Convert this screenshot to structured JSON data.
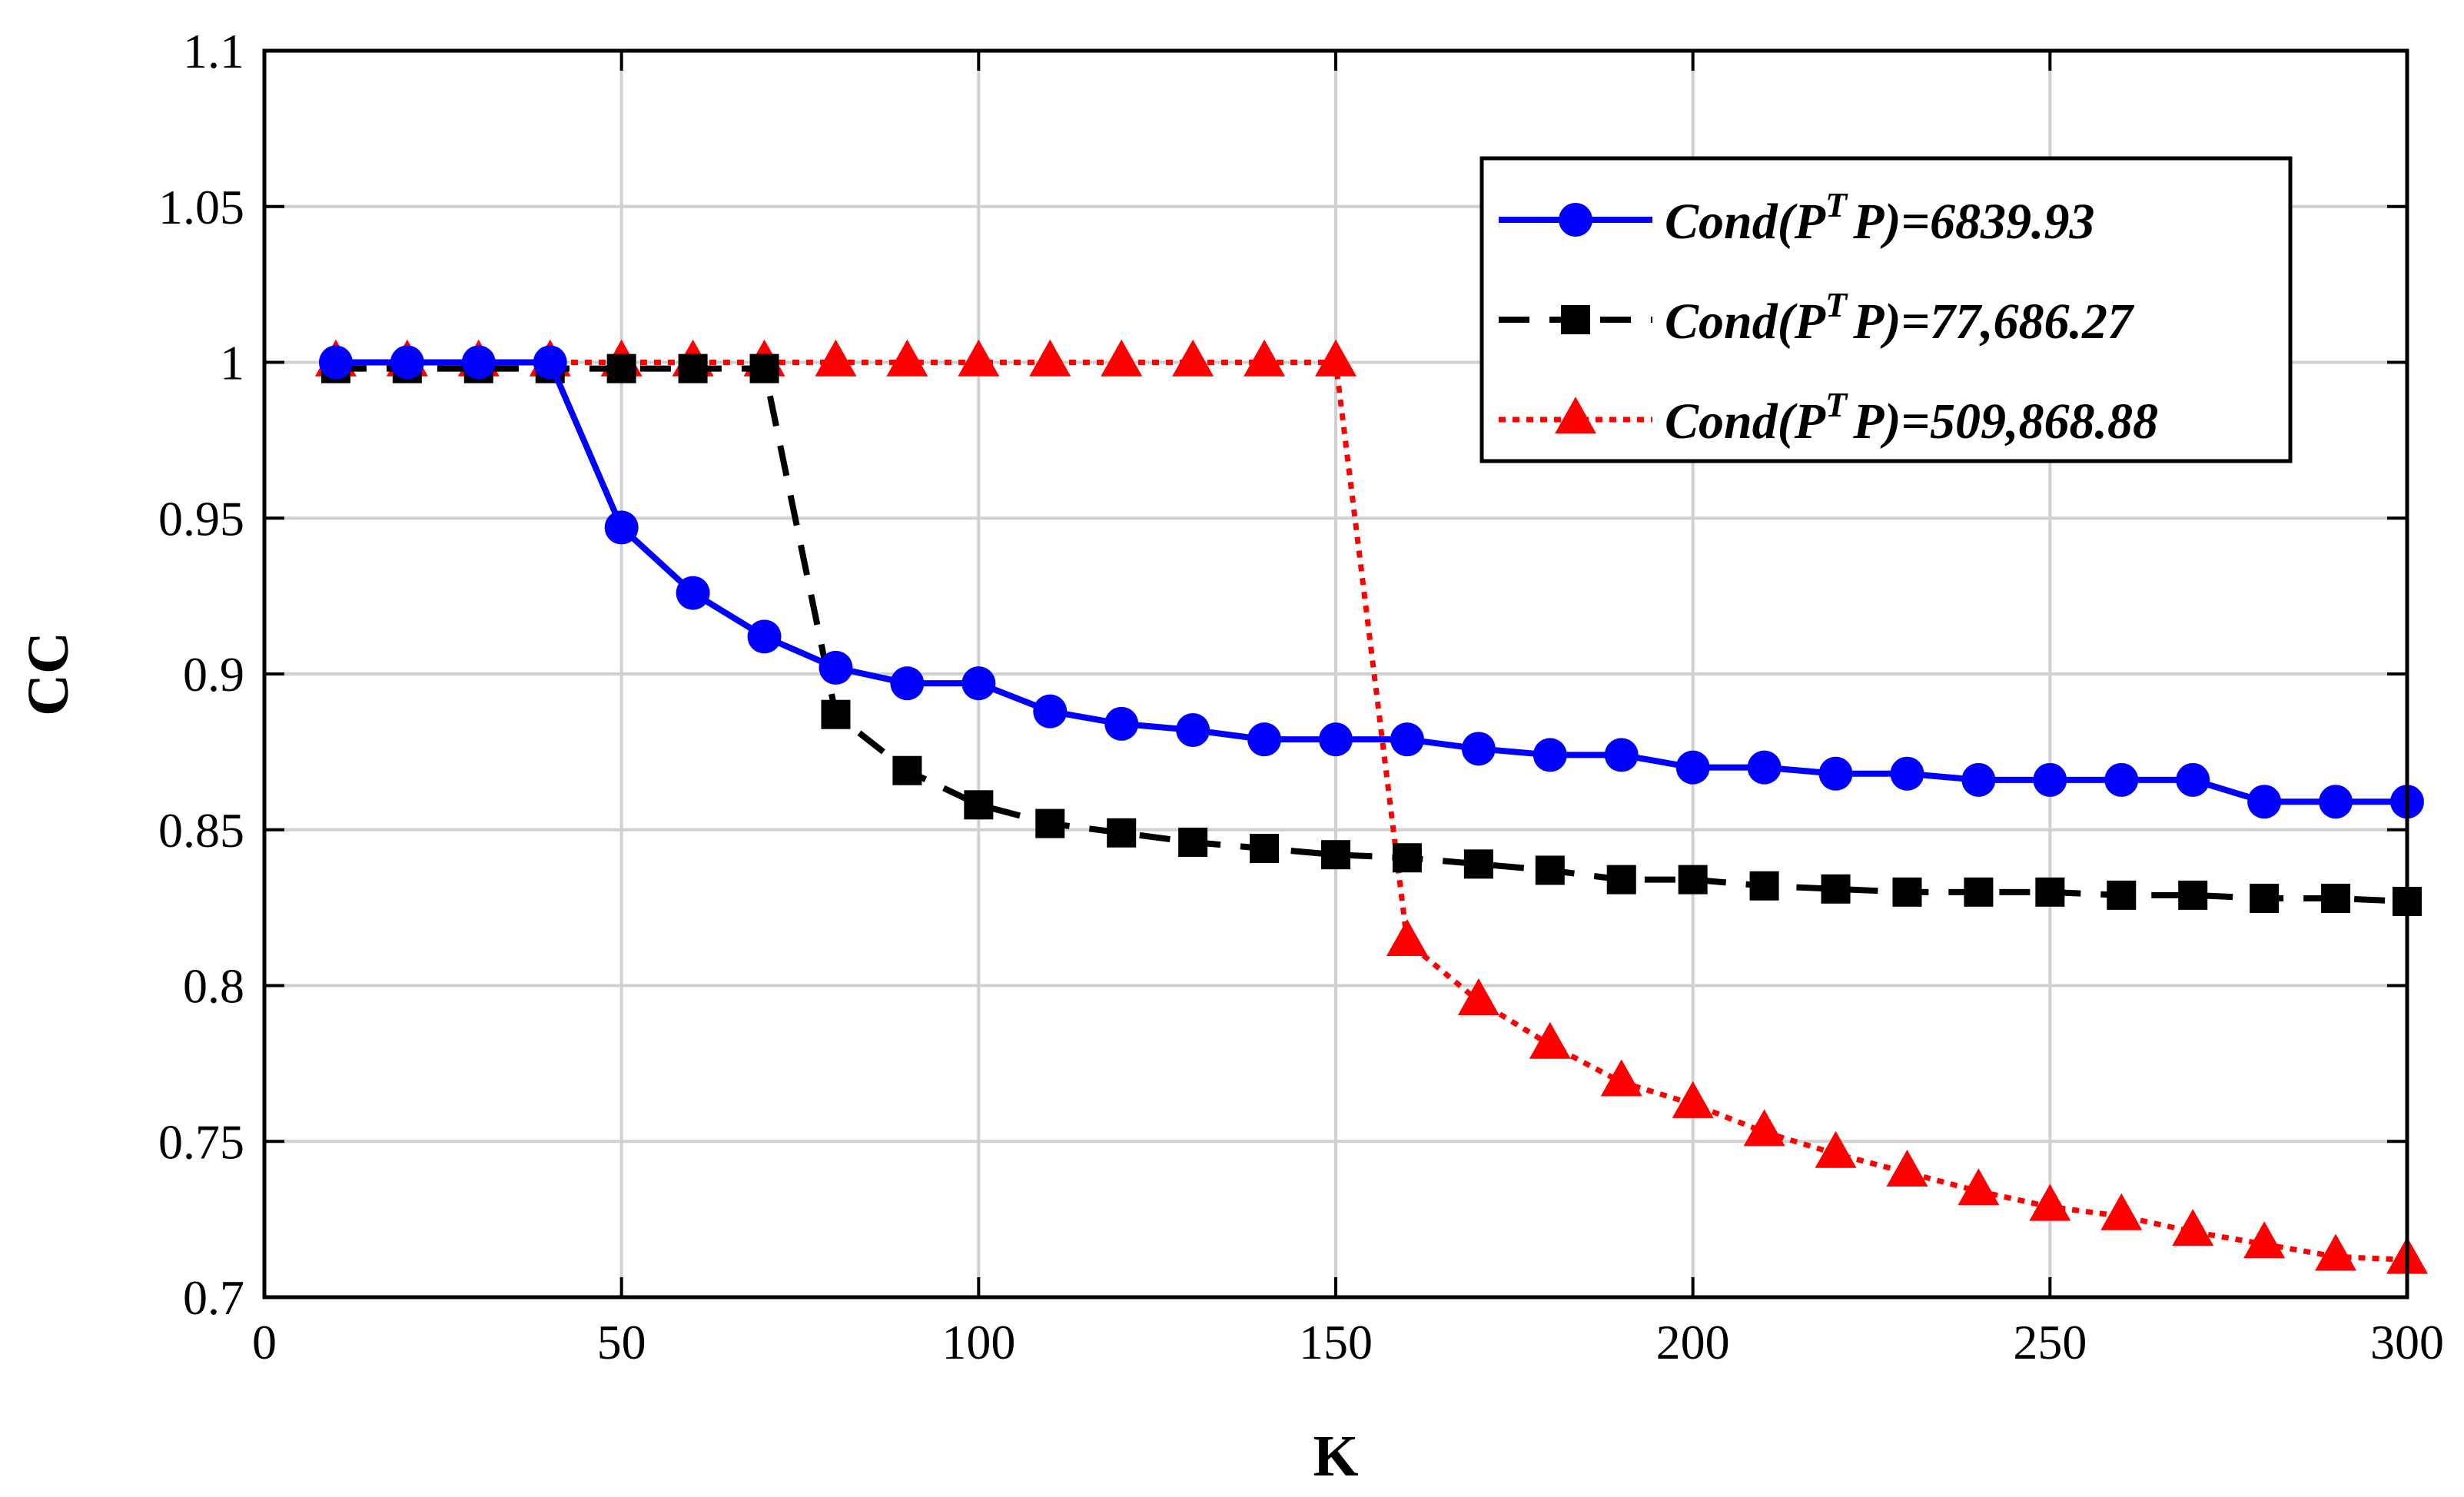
{
  "chart_data": {
    "type": "line",
    "title": "",
    "xlabel": "K",
    "ylabel": "CC",
    "xlim": [
      0,
      300
    ],
    "ylim": [
      0.7,
      1.1
    ],
    "xticks": [
      0,
      50,
      100,
      150,
      200,
      250,
      300
    ],
    "yticks": [
      0.7,
      0.75,
      0.8,
      0.85,
      0.9,
      0.95,
      1,
      1.05,
      1.1
    ],
    "xtick_labels": [
      "0",
      "50",
      "100",
      "150",
      "200",
      "250",
      "300"
    ],
    "ytick_labels": [
      "0.7",
      "0.75",
      "0.8",
      "0.85",
      "0.9",
      "0.95",
      "1",
      "1.05",
      "1.1"
    ],
    "grid": true,
    "legend_position": "top-right",
    "x": [
      10,
      20,
      30,
      40,
      50,
      60,
      70,
      80,
      90,
      100,
      110,
      120,
      130,
      140,
      150,
      160,
      170,
      180,
      190,
      200,
      210,
      220,
      230,
      240,
      250,
      260,
      270,
      280,
      290,
      300
    ],
    "series": [
      {
        "name": "Cond(P^T P)=6839.93",
        "legend_prefix": "Cond(P",
        "legend_sup": "T",
        "legend_suffix": "P)=6839.93",
        "color": "#0000ff",
        "line_style": "solid",
        "marker": "circle",
        "values": [
          1.0,
          1.0,
          1.0,
          1.0,
          0.947,
          0.926,
          0.912,
          0.902,
          0.897,
          0.897,
          0.888,
          0.884,
          0.882,
          0.879,
          0.879,
          0.879,
          0.876,
          0.874,
          0.874,
          0.87,
          0.87,
          0.868,
          0.868,
          0.866,
          0.866,
          0.866,
          0.866,
          0.859,
          0.859,
          0.859
        ]
      },
      {
        "name": "Cond(P^T P)=77,686.27",
        "legend_prefix": "Cond(P",
        "legend_sup": "T",
        "legend_suffix": "P)=77,686.27",
        "color": "#000000",
        "line_style": "dashed",
        "marker": "square",
        "values": [
          0.998,
          0.998,
          0.998,
          0.998,
          0.998,
          0.998,
          0.998,
          0.887,
          0.869,
          0.858,
          0.852,
          0.849,
          0.846,
          0.844,
          0.842,
          0.841,
          0.839,
          0.837,
          0.834,
          0.834,
          0.832,
          0.831,
          0.83,
          0.83,
          0.83,
          0.829,
          0.829,
          0.828,
          0.828,
          0.827
        ]
      },
      {
        "name": "Cond(P^T P)=509,868.88",
        "legend_prefix": "Cond(P",
        "legend_sup": "T",
        "legend_suffix": "P)=509,868.88",
        "color": "#ff0000",
        "line_style": "dotted",
        "marker": "triangle",
        "values": [
          1.0,
          1.0,
          1.0,
          1.0,
          1.0,
          1.0,
          1.0,
          1.0,
          1.0,
          1.0,
          1.0,
          1.0,
          1.0,
          1.0,
          1.0,
          0.814,
          0.795,
          0.781,
          0.769,
          0.762,
          0.753,
          0.746,
          0.74,
          0.734,
          0.729,
          0.726,
          0.721,
          0.717,
          0.713,
          0.712
        ]
      }
    ]
  }
}
